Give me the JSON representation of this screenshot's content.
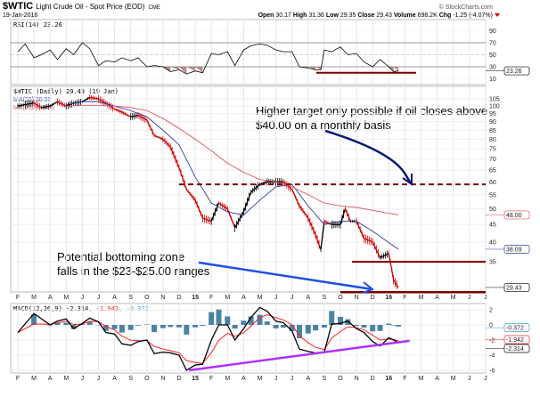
{
  "header": {
    "symbol": "$WTIC",
    "name": "Light Crude Oil - Spot Price (EOD)",
    "exchange": "CME",
    "date": "19-Jan-2016",
    "brand": "© StockCharts.com",
    "open_label": "Open",
    "open": "30.17",
    "high_label": "High",
    "high": "31.36",
    "low_label": "Low",
    "low": "29.35",
    "close_label": "Close",
    "close": "29.43",
    "volume_label": "Volume",
    "volume": "698.2K",
    "chg_label": "Chg",
    "chg": "-1.25 (-4.07%)"
  },
  "colors": {
    "price": "#000000",
    "down": "#cc0000",
    "ma50": "#2b3a9a",
    "ma200": "#e05060",
    "macd": "#000000",
    "signal": "#ff2020",
    "hist": "#2a6f93",
    "support": "#7a0000",
    "target_arrow": "#0a1a6e",
    "bottom_arrow": "#1f4fe8",
    "trendline": "#b030ff",
    "rsi_fill": "#9b5c5c"
  },
  "chart_data": [
    {
      "type": "line",
      "title": "RSI(14) 23.26",
      "yticks": [
        90,
        70,
        50,
        30,
        10
      ],
      "ylim": [
        0,
        100
      ],
      "last_label": "23.26",
      "x": [
        "2014-02-01",
        "2014-02-15",
        "2014-03-01",
        "2014-03-15",
        "2014-04-01",
        "2014-04-15",
        "2014-05-01",
        "2014-05-15",
        "2014-06-01",
        "2014-06-15",
        "2014-07-01",
        "2014-07-15",
        "2014-08-01",
        "2014-08-15",
        "2014-09-01",
        "2014-09-15",
        "2014-10-01",
        "2014-10-15",
        "2014-11-01",
        "2014-11-15",
        "2014-12-01",
        "2014-12-15",
        "2015-01-01",
        "2015-01-15",
        "2015-02-01",
        "2015-02-15",
        "2015-03-01",
        "2015-03-15",
        "2015-04-01",
        "2015-04-15",
        "2015-05-01",
        "2015-05-15",
        "2015-06-01",
        "2015-06-15",
        "2015-07-01",
        "2015-07-15",
        "2015-08-01",
        "2015-08-15",
        "2015-08-25",
        "2015-09-01",
        "2015-09-15",
        "2015-10-01",
        "2015-10-15",
        "2015-11-01",
        "2015-11-15",
        "2015-12-01",
        "2015-12-15",
        "2016-01-01",
        "2016-01-10",
        "2016-01-19"
      ],
      "values": [
        55,
        68,
        45,
        50,
        58,
        42,
        60,
        50,
        70,
        60,
        32,
        40,
        38,
        45,
        40,
        45,
        30,
        32,
        30,
        22,
        25,
        18,
        23,
        20,
        52,
        50,
        55,
        32,
        58,
        65,
        68,
        66,
        58,
        55,
        55,
        30,
        28,
        25,
        25,
        58,
        55,
        63,
        50,
        52,
        38,
        30,
        42,
        30,
        22,
        23.26
      ],
      "support_line": 20
    },
    {
      "type": "line",
      "title": "$WTIC (Daily) 29.43 (19 Jan)",
      "scale": "log",
      "yticks": [
        105,
        100,
        95,
        90,
        85,
        80,
        75,
        70,
        65,
        60,
        55,
        50,
        45,
        40,
        35
      ],
      "ylim": [
        27,
        108
      ],
      "xtick_labels": [
        "F",
        "M",
        "A",
        "M",
        "J",
        "J",
        "A",
        "S",
        "O",
        "N",
        "D",
        "15",
        "F",
        "M",
        "A",
        "M",
        "J",
        "J",
        "A",
        "S",
        "O",
        "N",
        "D",
        "16",
        "F",
        "M",
        "A",
        "M",
        "J",
        "J"
      ],
      "series": [
        {
          "name": "$WTIC (Daily) 29.43 (19 Jan)",
          "last_label": "29.43",
          "x": [
            "2014-02-01",
            "2014-02-15",
            "2014-03-01",
            "2014-03-15",
            "2014-04-01",
            "2014-04-15",
            "2014-05-01",
            "2014-05-15",
            "2014-06-01",
            "2014-06-15",
            "2014-07-01",
            "2014-07-15",
            "2014-08-01",
            "2014-08-15",
            "2014-09-01",
            "2014-09-15",
            "2014-10-01",
            "2014-10-15",
            "2014-11-01",
            "2014-11-15",
            "2014-12-01",
            "2014-12-15",
            "2015-01-01",
            "2015-01-15",
            "2015-02-01",
            "2015-02-15",
            "2015-03-01",
            "2015-03-15",
            "2015-04-01",
            "2015-04-15",
            "2015-05-01",
            "2015-05-15",
            "2015-06-01",
            "2015-06-15",
            "2015-07-01",
            "2015-07-15",
            "2015-08-01",
            "2015-08-15",
            "2015-08-25",
            "2015-09-01",
            "2015-09-15",
            "2015-10-01",
            "2015-10-10",
            "2015-10-20",
            "2015-11-01",
            "2015-11-15",
            "2015-12-01",
            "2015-12-15",
            "2016-01-01",
            "2016-01-10",
            "2016-01-19"
          ],
          "values": [
            100,
            101,
            102,
            99,
            100,
            103,
            100,
            102,
            103,
            106,
            105,
            102,
            98,
            96,
            93,
            94,
            91,
            82,
            80,
            76,
            66,
            57,
            53,
            47,
            46,
            52,
            50,
            44,
            49,
            56,
            59,
            60,
            60,
            60,
            57,
            51,
            47,
            42,
            38,
            46,
            45,
            45,
            50,
            46,
            46,
            41,
            40,
            36,
            37,
            31,
            29.43
          ]
        },
        {
          "name": "MA(50) 38.09",
          "last_label": "38.09",
          "x": [
            "2014-05-01",
            "2014-06-01",
            "2014-07-01",
            "2014-08-01",
            "2014-09-01",
            "2014-10-01",
            "2014-11-01",
            "2014-12-01",
            "2015-01-01",
            "2015-02-01",
            "2015-03-01",
            "2015-04-01",
            "2015-05-01",
            "2015-06-01",
            "2015-07-01",
            "2015-08-01",
            "2015-09-01",
            "2015-10-01",
            "2015-11-01",
            "2015-12-01",
            "2016-01-19"
          ],
          "values": [
            101,
            103,
            103,
            100,
            97,
            93,
            85,
            77,
            62,
            52,
            49,
            48,
            53,
            58,
            59,
            51,
            45,
            46,
            46,
            43,
            38.09
          ]
        },
        {
          "name": "MA(200) 48.00",
          "last_label": "48.00",
          "x": [
            "2014-05-01",
            "2014-06-01",
            "2014-07-01",
            "2014-08-01",
            "2014-09-01",
            "2014-10-01",
            "2014-11-01",
            "2014-12-01",
            "2015-01-01",
            "2015-02-01",
            "2015-03-01",
            "2015-04-01",
            "2015-05-01",
            "2015-06-01",
            "2015-07-01",
            "2015-08-01",
            "2015-09-01",
            "2015-10-01",
            "2015-11-01",
            "2015-12-01",
            "2016-01-19"
          ],
          "values": [
            100,
            100.5,
            100.5,
            100,
            99,
            97,
            92,
            86,
            80,
            74,
            68,
            64,
            61,
            60,
            58,
            55,
            52,
            51,
            50.5,
            49.5,
            48
          ]
        }
      ],
      "levels": {
        "resistance": 59,
        "support": 35,
        "bottom_zone": 28.5
      },
      "annotations": {
        "target_line1": "Higher target only possible if oil closes above",
        "target_line2": "$40.00 on a monthly basis",
        "bottom_line1": "Potential bottoming zone",
        "bottom_line2": "falls in the $23-$25.00 ranges"
      }
    },
    {
      "type": "line",
      "title": "MACD(12,26,9)",
      "values_label": {
        "macd": "-2.314",
        "signal": "-1.942",
        "hist": "-0.372"
      },
      "yticks": [
        2,
        0,
        -2,
        -4,
        -6
      ],
      "ylim": [
        -6.2,
        2.6
      ],
      "x": [
        "2014-02-01",
        "2014-03-01",
        "2014-04-01",
        "2014-04-15",
        "2014-05-01",
        "2014-05-15",
        "2014-06-01",
        "2014-06-15",
        "2014-07-01",
        "2014-07-15",
        "2014-08-01",
        "2014-08-15",
        "2014-09-01",
        "2014-09-15",
        "2014-10-01",
        "2014-10-15",
        "2014-11-01",
        "2014-11-15",
        "2014-12-01",
        "2014-12-15",
        "2015-01-01",
        "2015-01-15",
        "2015-02-01",
        "2015-02-15",
        "2015-03-01",
        "2015-03-15",
        "2015-04-01",
        "2015-04-15",
        "2015-05-01",
        "2015-05-15",
        "2015-06-01",
        "2015-06-15",
        "2015-07-01",
        "2015-07-15",
        "2015-08-01",
        "2015-08-15",
        "2015-09-01",
        "2015-09-15",
        "2015-10-01",
        "2015-10-15",
        "2015-11-01",
        "2015-11-15",
        "2015-12-01",
        "2015-12-15",
        "2016-01-01",
        "2016-01-10",
        "2016-01-19"
      ],
      "macd": [
        -1,
        1.5,
        0,
        0.5,
        0.8,
        -0.5,
        0.2,
        0.9,
        0.4,
        -1,
        -1.2,
        -2.5,
        -2.7,
        -2.2,
        -2,
        -3.8,
        -3.6,
        -3.7,
        -4,
        -6,
        -5.3,
        -5.2,
        -2,
        0,
        0,
        -2,
        -0.5,
        1,
        2.3,
        1.8,
        0.5,
        0.3,
        -0.8,
        -3.2,
        -3.5,
        -3.7,
        -3.6,
        0.1,
        0.2,
        0.5,
        -0.5,
        -1,
        -2.2,
        -2.8,
        -1.7,
        -2.0,
        -2.314
      ],
      "trendline": {
        "from": [
          "2014-12-20",
          -6
        ],
        "to": [
          "2016-02-10",
          -2.1
        ]
      }
    }
  ]
}
